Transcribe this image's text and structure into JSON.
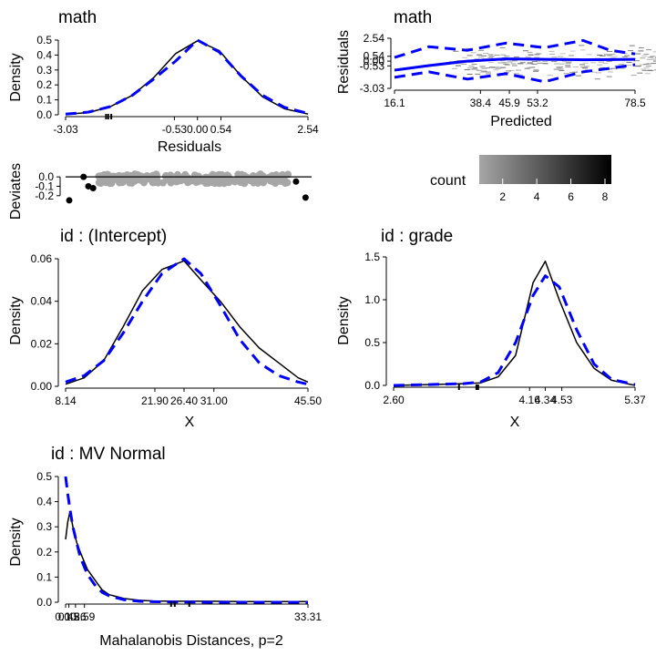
{
  "colors": {
    "density": "#000000",
    "normal": "#0000ff",
    "deviates_pts": "#a6a6a6",
    "outlier": "#000000",
    "grid": "#9a9a9a"
  },
  "chart_data": [
    {
      "id": "p1",
      "type": "line",
      "title": "math",
      "xlabel": "Residuals",
      "ylabel": "Density",
      "xlim": [
        -3.03,
        2.54
      ],
      "ylim": [
        0,
        0.5
      ],
      "xticks": [
        "-3.03",
        "-0.53",
        "0.00",
        "0.54",
        "2.54"
      ],
      "xtick_values": [
        -3.03,
        -0.53,
        0.0,
        0.54,
        2.54
      ],
      "yticks": [
        "0.0",
        "0.1",
        "0.2",
        "0.3",
        "0.4",
        "0.5"
      ],
      "ytick_values": [
        0.0,
        0.1,
        0.2,
        0.3,
        0.4,
        0.5
      ],
      "series": [
        {
          "style": "solid",
          "x": [
            -3.03,
            -2.5,
            -2.0,
            -1.5,
            -1.0,
            -0.5,
            0.0,
            0.5,
            1.0,
            1.5,
            2.0,
            2.54
          ],
          "y": [
            0.003,
            0.015,
            0.055,
            0.13,
            0.25,
            0.41,
            0.495,
            0.43,
            0.26,
            0.12,
            0.04,
            0.005
          ]
        },
        {
          "style": "dashed",
          "x": [
            -3.03,
            -2.5,
            -2.0,
            -1.5,
            -1.0,
            -0.5,
            0.0,
            0.5,
            1.0,
            1.5,
            2.0,
            2.54
          ],
          "y": [
            0.004,
            0.018,
            0.055,
            0.13,
            0.24,
            0.36,
            0.5,
            0.42,
            0.26,
            0.13,
            0.05,
            0.01
          ]
        }
      ],
      "rug": [
        -2.1,
        -2.05,
        -1.98
      ]
    },
    {
      "id": "p2",
      "type": "scatter",
      "title": "math",
      "xlabel": "Predicted",
      "ylabel": "Residuals",
      "xlim": [
        16.1,
        78.5
      ],
      "ylim": [
        -3.03,
        2.54
      ],
      "xticks": [
        "16.1",
        "38.4",
        "45.9",
        "53.2",
        "78.5"
      ],
      "xtick_values": [
        16.1,
        38.4,
        45.9,
        53.2,
        78.5
      ],
      "yticks": [
        "2.54",
        "0.54",
        "0.00",
        "-0.53",
        "-3.03"
      ],
      "ytick_values": [
        2.54,
        0.54,
        0.0,
        -0.53,
        -3.03
      ],
      "series": [
        {
          "style": "solid",
          "x": [
            16.1,
            25,
            35,
            45,
            55,
            65,
            78.5
          ],
          "y": [
            -1.0,
            -0.5,
            0.0,
            0.25,
            0.2,
            0.15,
            0.2
          ]
        },
        {
          "style": "dashed",
          "x": [
            16.1,
            25,
            35,
            45,
            55,
            65,
            72,
            78.5
          ],
          "y": [
            0.4,
            1.6,
            1.2,
            2.0,
            1.5,
            2.3,
            1.2,
            0.8
          ]
        },
        {
          "style": "dashed",
          "x": [
            16.1,
            25,
            35,
            45,
            55,
            65,
            72,
            78.5
          ],
          "y": [
            -1.8,
            -1.2,
            -2.0,
            -1.4,
            -2.3,
            -1.2,
            -0.8,
            -0.4
          ]
        }
      ]
    },
    {
      "id": "p3",
      "type": "scatter",
      "ylabel": "Deviates",
      "yticks": [
        "0.0",
        "-0.1",
        "-0.2"
      ],
      "ytick_values": [
        0.0,
        -0.1,
        -0.2
      ],
      "ylim": [
        -0.27,
        0.04
      ],
      "outliers": [
        {
          "x": 0.0,
          "y": -0.25
        },
        {
          "x": 0.06,
          "y": 0.0
        },
        {
          "x": 0.08,
          "y": -0.1
        },
        {
          "x": 0.1,
          "y": -0.12
        },
        {
          "x": 0.95,
          "y": -0.05
        },
        {
          "x": 0.99,
          "y": -0.22
        }
      ]
    },
    {
      "id": "legend",
      "type": "legend",
      "title": "count",
      "ticks": [
        "2",
        "4",
        "6",
        "8"
      ],
      "tick_values": [
        2,
        4,
        6,
        8
      ],
      "range": [
        1,
        8
      ]
    },
    {
      "id": "p4",
      "type": "line",
      "title": "id : (Intercept)",
      "xlabel": "X",
      "ylabel": "Density",
      "xlim": [
        8.14,
        45.5
      ],
      "ylim": [
        0,
        0.06
      ],
      "xticks": [
        "8.14",
        "21.90",
        "26.40",
        "31.00",
        "45.50"
      ],
      "xtick_values": [
        8.14,
        21.9,
        26.4,
        31.0,
        45.5
      ],
      "yticks": [
        "0.00",
        "0.02",
        "0.04",
        "0.06"
      ],
      "ytick_values": [
        0.0,
        0.02,
        0.04,
        0.06
      ],
      "series": [
        {
          "style": "solid",
          "x": [
            8.14,
            11,
            14,
            17,
            20,
            23,
            26.4,
            29,
            32,
            35,
            38,
            41,
            44,
            45.5
          ],
          "y": [
            0.001,
            0.004,
            0.012,
            0.028,
            0.045,
            0.055,
            0.059,
            0.05,
            0.04,
            0.028,
            0.018,
            0.011,
            0.004,
            0.002
          ]
        },
        {
          "style": "dashed",
          "x": [
            8.14,
            11,
            14,
            17,
            20,
            23,
            26.4,
            29,
            32,
            35,
            38,
            41,
            44,
            45.5
          ],
          "y": [
            0.002,
            0.005,
            0.012,
            0.025,
            0.04,
            0.053,
            0.06,
            0.053,
            0.038,
            0.022,
            0.011,
            0.005,
            0.002,
            0.001
          ]
        }
      ]
    },
    {
      "id": "p5",
      "type": "line",
      "title": "id : grade",
      "xlabel": "X",
      "ylabel": "Density",
      "xlim": [
        2.6,
        5.37
      ],
      "ylim": [
        0,
        1.5
      ],
      "xticks": [
        "2.60",
        "4.16",
        "4.34",
        "4.53",
        "5.37"
      ],
      "xtick_values": [
        2.6,
        4.16,
        4.34,
        4.53,
        5.37
      ],
      "yticks": [
        "0.0",
        "0.5",
        "1.0",
        "1.5"
      ],
      "ytick_values": [
        0.0,
        0.5,
        1.0,
        1.5
      ],
      "series": [
        {
          "style": "solid",
          "x": [
            2.6,
            3.0,
            3.4,
            3.6,
            3.8,
            4.0,
            4.2,
            4.34,
            4.5,
            4.7,
            4.9,
            5.1,
            5.37
          ],
          "y": [
            0.0,
            0.01,
            0.02,
            0.03,
            0.1,
            0.35,
            1.2,
            1.45,
            1.0,
            0.5,
            0.2,
            0.06,
            0.0
          ]
        },
        {
          "style": "dashed",
          "x": [
            2.6,
            3.0,
            3.4,
            3.6,
            3.8,
            4.0,
            4.2,
            4.34,
            4.5,
            4.7,
            4.9,
            5.1,
            5.37
          ],
          "y": [
            0.0,
            0.01,
            0.02,
            0.04,
            0.15,
            0.5,
            1.05,
            1.28,
            1.15,
            0.65,
            0.25,
            0.07,
            0.01
          ]
        }
      ],
      "rug": [
        3.35,
        3.55,
        3.57
      ]
    },
    {
      "id": "p6",
      "type": "line",
      "title": "id : MV Normal",
      "xlabel": "Mahalanobis Distances, p=2",
      "ylabel": "Density",
      "xlim": [
        0.0,
        33.31
      ],
      "ylim": [
        0,
        0.5
      ],
      "xticks": [
        "0.00",
        "0.45",
        "1.36",
        "2.59",
        "33.31"
      ],
      "xtick_values": [
        0.0,
        0.45,
        1.36,
        2.59,
        33.31
      ],
      "yticks": [
        "0.0",
        "0.1",
        "0.2",
        "0.3",
        "0.4",
        "0.5"
      ],
      "ytick_values": [
        0.0,
        0.1,
        0.2,
        0.3,
        0.4,
        0.5
      ],
      "series": [
        {
          "style": "solid",
          "x": [
            0,
            0.3,
            0.6,
            1,
            1.5,
            2,
            3,
            4,
            5,
            6,
            8,
            10,
            12,
            15,
            20,
            25,
            30,
            33.31
          ],
          "y": [
            0.25,
            0.32,
            0.36,
            0.3,
            0.24,
            0.2,
            0.13,
            0.09,
            0.05,
            0.03,
            0.015,
            0.008,
            0.005,
            0.004,
            0.004,
            0.003,
            0.003,
            0.003
          ]
        },
        {
          "style": "dashed",
          "x": [
            0,
            0.3,
            0.6,
            1,
            1.5,
            2,
            3,
            4,
            5,
            6,
            8,
            10,
            12,
            15,
            20,
            25,
            30,
            33.31
          ],
          "y": [
            0.5,
            0.43,
            0.37,
            0.3,
            0.24,
            0.18,
            0.11,
            0.07,
            0.04,
            0.025,
            0.01,
            0.004,
            0.002,
            0.001,
            0.0,
            0.0,
            0.0,
            0.0
          ]
        }
      ],
      "rug": [
        14.5,
        15.0,
        17.0
      ]
    }
  ]
}
